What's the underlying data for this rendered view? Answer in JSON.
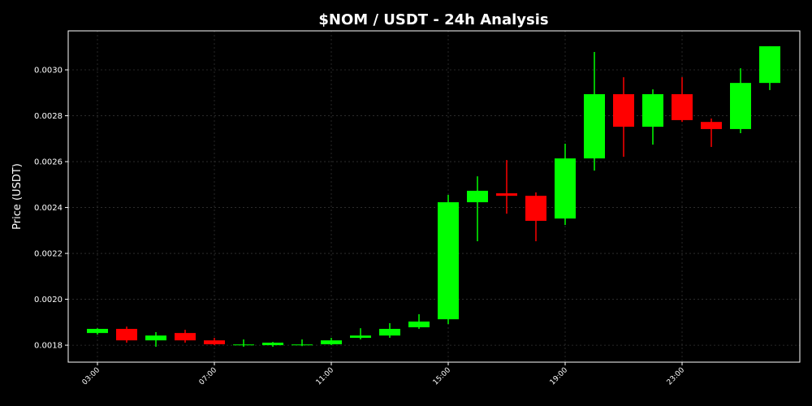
{
  "chart_data": {
    "type": "candlestick",
    "title": "$NOM / USDT - 24h Analysis",
    "y_label": "Price (USDT)",
    "categories": [
      "03:00",
      null,
      null,
      null,
      "07:00",
      null,
      null,
      null,
      "11:00",
      null,
      null,
      null,
      "15:00",
      null,
      null,
      null,
      "19:00",
      null,
      null,
      null,
      "23:00",
      null,
      null,
      null
    ],
    "open": [
      0.001853,
      0.001871,
      0.001821,
      0.001853,
      0.001821,
      0.0018,
      0.0018,
      0.0018,
      0.001804,
      0.001832,
      0.001842,
      0.001878,
      0.001913,
      0.002423,
      0.002462,
      0.002451,
      0.002352,
      0.002614,
      0.002894,
      0.002752,
      0.002894,
      0.002773,
      0.002742,
      0.002943
    ],
    "high": [
      0.001874,
      0.001881,
      0.001857,
      0.001867,
      0.001832,
      0.001825,
      0.001814,
      0.001825,
      0.001832,
      0.001874,
      0.001896,
      0.001935,
      0.002455,
      0.002536,
      0.002607,
      0.002466,
      0.002678,
      0.003078,
      0.002968,
      0.002915,
      0.002968,
      0.002788,
      0.003007,
      0.003103
    ],
    "low": [
      0.001846,
      0.001811,
      0.001793,
      0.001811,
      0.0018,
      0.001793,
      0.001793,
      0.001796,
      0.0018,
      0.001825,
      0.001832,
      0.001871,
      0.001892,
      0.002253,
      0.002373,
      0.002253,
      0.002324,
      0.002561,
      0.002621,
      0.002674,
      0.002773,
      0.002664,
      0.002724,
      0.002912
    ],
    "close": [
      0.001871,
      0.001821,
      0.001842,
      0.001821,
      0.001804,
      0.001803,
      0.001811,
      0.001803,
      0.001821,
      0.001842,
      0.001871,
      0.001903,
      0.002423,
      0.002473,
      0.002451,
      0.002342,
      0.002614,
      0.002894,
      0.002752,
      0.002894,
      0.002781,
      0.002742,
      0.002943,
      0.003103
    ],
    "up_color": "#00ff00",
    "down_color": "#ff0000",
    "ylim": [
      0.001726,
      0.00317
    ],
    "yticks": [
      0.0018,
      {
        "value": 0.002,
        "label": "0.0020"
      },
      0.0022,
      0.0024,
      0.0026,
      0.0028,
      {
        "value": 0.003,
        "label": "0.0030"
      }
    ],
    "grid": true
  }
}
